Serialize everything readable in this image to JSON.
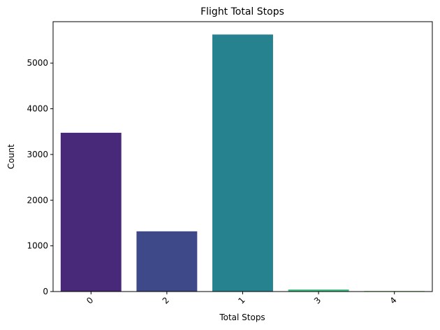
{
  "chart_data": {
    "type": "bar",
    "title": "Flight Total Stops",
    "xlabel": "Total Stops",
    "ylabel": "Count",
    "categories": [
      "0",
      "2",
      "1",
      "3",
      "4"
    ],
    "values": [
      3475,
      1318,
      5625,
      43,
      1
    ],
    "colors": [
      "#482878",
      "#3e4989",
      "#26828e",
      "#35b779",
      "#6ece58"
    ],
    "ylim": [
      0,
      5906
    ],
    "yticks": [
      0,
      1000,
      2000,
      3000,
      4000,
      5000
    ],
    "grid": false,
    "legend": "none",
    "xtick_rotation": 45
  }
}
